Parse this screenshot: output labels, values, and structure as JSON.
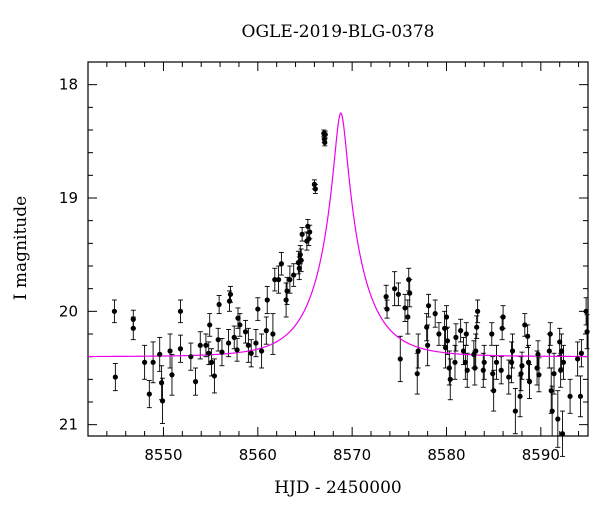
{
  "chart_data": {
    "type": "scatter",
    "title": "OGLE-2019-BLG-0378",
    "xlabel": "HJD - 2450000",
    "ylabel": "I magnitude",
    "xlim": [
      8542,
      8595
    ],
    "ylim": [
      21.1,
      17.8
    ],
    "y_inverted": true,
    "x_ticks_major": [
      8550,
      8560,
      8570,
      8580,
      8590
    ],
    "x_ticks_minor_step": 2,
    "y_ticks_major": [
      18,
      19,
      20,
      21
    ],
    "y_ticks_minor_step": 0.2,
    "grid": false,
    "series": [
      {
        "kind": "points_with_errorbars",
        "color": "#000000",
        "points": [
          [
            8544.8,
            20.0,
            0.1
          ],
          [
            8544.9,
            20.58,
            0.12
          ],
          [
            8546.8,
            20.07,
            0.08
          ],
          [
            8546.8,
            20.15,
            0.1
          ],
          [
            8548.0,
            20.45,
            0.15
          ],
          [
            8548.5,
            20.73,
            0.12
          ],
          [
            8548.9,
            20.45,
            0.18
          ],
          [
            8549.6,
            20.38,
            0.15
          ],
          [
            8549.8,
            20.63,
            0.15
          ],
          [
            8549.9,
            20.79,
            0.2
          ],
          [
            8550.7,
            20.35,
            0.15
          ],
          [
            8550.9,
            20.56,
            0.18
          ],
          [
            8551.8,
            20.33,
            0.12
          ],
          [
            8551.8,
            20.0,
            0.1
          ],
          [
            8552.9,
            20.4,
            0.12
          ],
          [
            8553.4,
            20.62,
            0.12
          ],
          [
            8553.9,
            20.3,
            0.12
          ],
          [
            8554.5,
            20.3,
            0.1
          ],
          [
            8554.8,
            20.37,
            0.1
          ],
          [
            8554.9,
            20.12,
            0.1
          ],
          [
            8555.1,
            20.45,
            0.12
          ],
          [
            8555.4,
            20.57,
            0.15
          ],
          [
            8555.8,
            20.25,
            0.1
          ],
          [
            8555.9,
            19.94,
            0.08
          ],
          [
            8556.2,
            20.36,
            0.12
          ],
          [
            8556.9,
            20.28,
            0.12
          ],
          [
            8557.0,
            19.91,
            0.09
          ],
          [
            8557.1,
            19.85,
            0.07
          ],
          [
            8557.5,
            20.23,
            0.1
          ],
          [
            8557.8,
            20.34,
            0.1
          ],
          [
            8557.9,
            20.06,
            0.09
          ],
          [
            8558.1,
            20.12,
            0.1
          ],
          [
            8558.7,
            20.18,
            0.1
          ],
          [
            8559.0,
            20.3,
            0.15
          ],
          [
            8559.3,
            20.37,
            0.12
          ],
          [
            8559.8,
            20.28,
            0.12
          ],
          [
            8560.0,
            19.98,
            0.1
          ],
          [
            8560.4,
            20.35,
            0.15
          ],
          [
            8560.9,
            20.17,
            0.12
          ],
          [
            8561.0,
            19.9,
            0.12
          ],
          [
            8561.6,
            20.2,
            0.18
          ],
          [
            8561.8,
            19.72,
            0.1
          ],
          [
            8562.2,
            19.72,
            0.12
          ],
          [
            8562.5,
            19.58,
            0.1
          ],
          [
            8563.0,
            19.9,
            0.15
          ],
          [
            8563.1,
            19.82,
            0.12
          ],
          [
            8563.4,
            19.72,
            0.12
          ],
          [
            8563.8,
            19.68,
            0.1
          ],
          [
            8564.3,
            19.57,
            0.1
          ],
          [
            8564.4,
            19.62,
            0.1
          ],
          [
            8564.5,
            19.5,
            0.08
          ],
          [
            8564.6,
            19.55,
            0.1
          ],
          [
            8564.7,
            19.32,
            0.06
          ],
          [
            8565.2,
            19.38,
            0.08
          ],
          [
            8565.3,
            19.25,
            0.06
          ],
          [
            8565.4,
            19.36,
            0.06
          ],
          [
            8565.5,
            19.3,
            0.06
          ],
          [
            8566.0,
            18.88,
            0.04
          ],
          [
            8566.1,
            18.92,
            0.04
          ],
          [
            8567.0,
            18.43,
            0.03
          ],
          [
            8567.05,
            18.48,
            0.03
          ],
          [
            8567.1,
            18.51,
            0.03
          ],
          [
            8567.15,
            18.44,
            0.03
          ],
          [
            8573.6,
            19.87,
            0.1
          ],
          [
            8573.7,
            19.98,
            0.08
          ],
          [
            8574.5,
            19.8,
            0.15
          ],
          [
            8574.9,
            19.85,
            0.1
          ],
          [
            8575.1,
            20.42,
            0.2
          ],
          [
            8575.6,
            19.97,
            0.12
          ],
          [
            8575.9,
            20.05,
            0.15
          ],
          [
            8576.0,
            19.72,
            0.1
          ],
          [
            8576.1,
            19.84,
            0.12
          ],
          [
            8576.9,
            20.55,
            0.18
          ],
          [
            8577.0,
            20.35,
            0.15
          ],
          [
            8577.9,
            20.14,
            0.12
          ],
          [
            8578.0,
            20.3,
            0.18
          ],
          [
            8578.1,
            19.95,
            0.1
          ],
          [
            8578.8,
            20.02,
            0.12
          ],
          [
            8579.2,
            20.2,
            0.1
          ],
          [
            8579.8,
            20.15,
            0.15
          ],
          [
            8579.9,
            20.32,
            0.18
          ],
          [
            8580.0,
            20.05,
            0.1
          ],
          [
            8580.1,
            20.26,
            0.12
          ],
          [
            8580.3,
            20.5,
            0.15
          ],
          [
            8580.4,
            20.6,
            0.18
          ],
          [
            8580.9,
            20.45,
            0.15
          ],
          [
            8581.0,
            20.23,
            0.12
          ],
          [
            8581.5,
            20.17,
            0.1
          ],
          [
            8581.8,
            20.35,
            0.12
          ],
          [
            8582.0,
            20.45,
            0.15
          ],
          [
            8582.1,
            20.2,
            0.1
          ],
          [
            8582.2,
            20.52,
            0.15
          ],
          [
            8582.9,
            20.38,
            0.12
          ],
          [
            8583.0,
            20.5,
            0.15
          ],
          [
            8583.1,
            20.35,
            0.15
          ],
          [
            8583.2,
            20.14,
            0.1
          ],
          [
            8583.3,
            20.0,
            0.1
          ],
          [
            8583.9,
            20.52,
            0.15
          ],
          [
            8584.0,
            20.45,
            0.15
          ],
          [
            8584.8,
            20.2,
            0.1
          ],
          [
            8584.9,
            20.55,
            0.15
          ],
          [
            8585.0,
            20.7,
            0.18
          ],
          [
            8585.3,
            20.45,
            0.15
          ],
          [
            8585.8,
            20.52,
            0.12
          ],
          [
            8585.9,
            20.15,
            0.1
          ],
          [
            8586.0,
            20.05,
            0.1
          ],
          [
            8586.6,
            20.58,
            0.15
          ],
          [
            8586.9,
            20.45,
            0.18
          ],
          [
            8587.0,
            20.35,
            0.15
          ],
          [
            8587.3,
            20.88,
            0.2
          ],
          [
            8587.8,
            20.75,
            0.18
          ],
          [
            8587.9,
            20.55,
            0.15
          ],
          [
            8588.0,
            20.48,
            0.12
          ],
          [
            8588.3,
            20.12,
            0.1
          ],
          [
            8588.6,
            20.22,
            0.1
          ],
          [
            8588.7,
            20.45,
            0.15
          ],
          [
            8588.8,
            20.62,
            0.15
          ],
          [
            8589.6,
            20.5,
            0.15
          ],
          [
            8589.7,
            20.38,
            0.12
          ],
          [
            8589.8,
            20.56,
            0.15
          ],
          [
            8590.9,
            20.35,
            0.15
          ],
          [
            8591.0,
            20.2,
            0.1
          ],
          [
            8591.1,
            20.7,
            0.2
          ],
          [
            8591.2,
            20.88,
            0.22
          ],
          [
            8591.4,
            20.55,
            0.18
          ],
          [
            8591.8,
            20.95,
            0.25
          ],
          [
            8592.0,
            20.27,
            0.12
          ],
          [
            8592.1,
            20.52,
            0.15
          ],
          [
            8592.2,
            20.35,
            0.15
          ],
          [
            8592.3,
            21.08,
            0.2
          ],
          [
            8592.4,
            20.45,
            0.15
          ],
          [
            8593.1,
            20.75,
            0.15
          ],
          [
            8593.9,
            20.42,
            0.15
          ],
          [
            8594.2,
            20.75,
            0.18
          ],
          [
            8594.3,
            20.37,
            0.12
          ],
          [
            8594.8,
            20.0,
            0.12
          ],
          [
            8594.9,
            20.18,
            0.15
          ]
        ]
      },
      {
        "kind": "model_curve",
        "color": "#ee00ee",
        "peak_t": 8568.8,
        "peak_mag": 18.25,
        "baseline_mag": 20.4,
        "tE": 4.5
      }
    ]
  }
}
